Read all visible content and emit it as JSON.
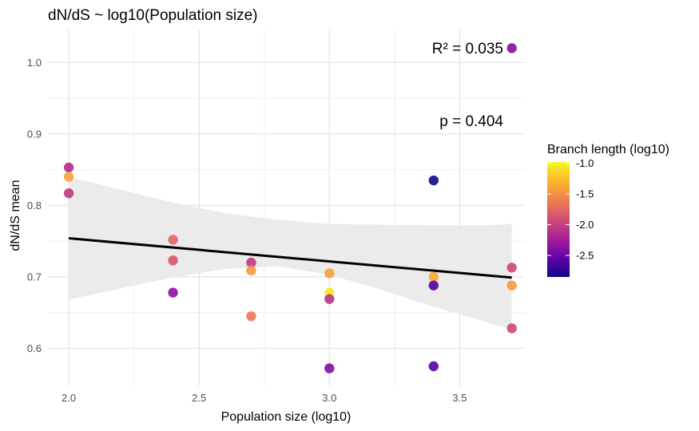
{
  "chart_data": {
    "type": "scatter",
    "title": "dN/dS ~ log10(Population size)",
    "xlabel": "Population size (log10)",
    "ylabel": "dN/dS mean",
    "xlim": [
      1.92,
      3.75
    ],
    "ylim": [
      0.548,
      1.045
    ],
    "x_ticks": [
      2.0,
      2.5,
      3.0,
      3.5
    ],
    "x_tick_labels": [
      "2.0",
      "2.5",
      "3.0",
      "3.5"
    ],
    "y_ticks": [
      0.6,
      0.7,
      0.8,
      0.9,
      1.0
    ],
    "y_tick_labels": [
      "0.6",
      "0.7",
      "0.8",
      "0.9",
      "1.0"
    ],
    "grid": true,
    "legend": {
      "title": "Branch length (log10)",
      "position": "right",
      "range": [
        -2.85,
        -0.98
      ],
      "ticks": [
        -1.0,
        -1.5,
        -2.0,
        -2.5
      ],
      "tick_labels": [
        "-1.0",
        "-1.5",
        "-2.0",
        "-2.5"
      ]
    },
    "annotations": [
      "R² = 0.035",
      "p = 0.404"
    ],
    "fit_line": {
      "x": [
        2.0,
        3.7
      ],
      "y": [
        0.754,
        0.699
      ]
    },
    "confidence_band": {
      "x": [
        2.0,
        2.2,
        2.4,
        2.6,
        2.8,
        3.0,
        3.2,
        3.4,
        3.6,
        3.7
      ],
      "lower": [
        0.668,
        0.684,
        0.699,
        0.711,
        0.715,
        0.703,
        0.682,
        0.658,
        0.637,
        0.626
      ],
      "upper": [
        0.84,
        0.822,
        0.804,
        0.789,
        0.78,
        0.774,
        0.773,
        0.772,
        0.772,
        0.774
      ]
    },
    "points": [
      {
        "x": 2.0,
        "y": 0.853,
        "c": -2.15
      },
      {
        "x": 2.0,
        "y": 0.84,
        "c": -1.4
      },
      {
        "x": 2.0,
        "y": 0.817,
        "c": -2.05
      },
      {
        "x": 2.4,
        "y": 0.752,
        "c": -1.75
      },
      {
        "x": 2.4,
        "y": 0.723,
        "c": -1.85
      },
      {
        "x": 2.4,
        "y": 0.678,
        "c": -2.35
      },
      {
        "x": 2.7,
        "y": 0.72,
        "c": -2.05
      },
      {
        "x": 2.7,
        "y": 0.709,
        "c": -1.45
      },
      {
        "x": 2.7,
        "y": 0.645,
        "c": -1.65
      },
      {
        "x": 3.0,
        "y": 0.705,
        "c": -1.4
      },
      {
        "x": 3.0,
        "y": 0.678,
        "c": -1.05
      },
      {
        "x": 3.0,
        "y": 0.669,
        "c": -2.1
      },
      {
        "x": 3.0,
        "y": 0.572,
        "c": -2.4
      },
      {
        "x": 3.4,
        "y": 0.835,
        "c": -2.85
      },
      {
        "x": 3.4,
        "y": 0.7,
        "c": -1.35
      },
      {
        "x": 3.4,
        "y": 0.688,
        "c": -2.6
      },
      {
        "x": 3.4,
        "y": 0.575,
        "c": -2.6
      },
      {
        "x": 3.7,
        "y": 1.02,
        "c": -2.4
      },
      {
        "x": 3.7,
        "y": 0.713,
        "c": -1.95
      },
      {
        "x": 3.7,
        "y": 0.688,
        "c": -1.45
      },
      {
        "x": 3.7,
        "y": 0.628,
        "c": -1.95
      }
    ]
  }
}
